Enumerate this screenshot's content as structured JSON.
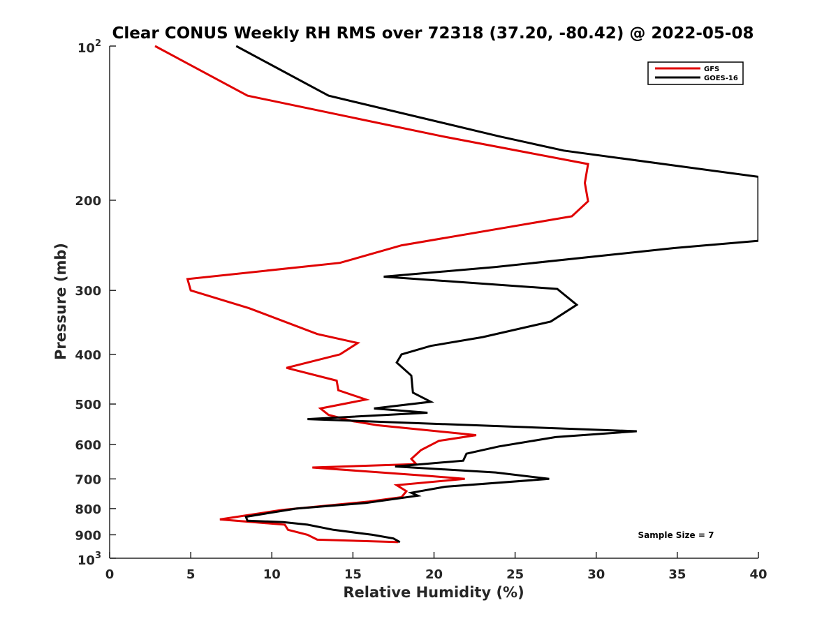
{
  "chart_data": {
    "type": "line",
    "title": "Clear CONUS Weekly RH RMS over 72318 (37.20, -80.42) @ 2022-05-08",
    "xlabel": "Relative Humidity (%)",
    "ylabel": "Pressure (mb)",
    "xlim": [
      0,
      40
    ],
    "ylim": [
      100,
      1000
    ],
    "y_scale": "log",
    "y_reversed": true,
    "x_ticks": [
      "0",
      "5",
      "10",
      "15",
      "20",
      "25",
      "30",
      "35",
      "40"
    ],
    "y_ticks": [
      {
        "value": 100,
        "base": "10",
        "exp": "2"
      },
      {
        "value": 200,
        "label": "200"
      },
      {
        "value": 300,
        "label": "300"
      },
      {
        "value": 400,
        "label": "400"
      },
      {
        "value": 500,
        "label": "500"
      },
      {
        "value": 600,
        "label": "600"
      },
      {
        "value": 700,
        "label": "700"
      },
      {
        "value": 800,
        "label": "800"
      },
      {
        "value": 900,
        "label": "900"
      },
      {
        "value": 1000,
        "base": "10",
        "exp": "3"
      }
    ],
    "grid": false,
    "legend_position": "top-right",
    "annotation": "Sample Size = 7",
    "series": [
      {
        "name": "GFS",
        "color": "#e00000",
        "points": [
          [
            2.8,
            100
          ],
          [
            8.5,
            125
          ],
          [
            20.5,
            150
          ],
          [
            29.5,
            170
          ],
          [
            29.3,
            185
          ],
          [
            29.5,
            201
          ],
          [
            28.5,
            215
          ],
          [
            18.0,
            245
          ],
          [
            14.2,
            265
          ],
          [
            4.8,
            285
          ],
          [
            5.0,
            300
          ],
          [
            8.6,
            325
          ],
          [
            12.8,
            365
          ],
          [
            15.3,
            380
          ],
          [
            14.2,
            400
          ],
          [
            10.9,
            425
          ],
          [
            14.0,
            450
          ],
          [
            14.1,
            470
          ],
          [
            15.8,
            490
          ],
          [
            13.0,
            510
          ],
          [
            13.5,
            525
          ],
          [
            15.0,
            540
          ],
          [
            16.5,
            550
          ],
          [
            22.6,
            575
          ],
          [
            20.3,
            590
          ],
          [
            19.2,
            615
          ],
          [
            18.6,
            640
          ],
          [
            18.9,
            655
          ],
          [
            12.5,
            665
          ],
          [
            19.5,
            690
          ],
          [
            21.9,
            700
          ],
          [
            17.7,
            720
          ],
          [
            18.3,
            740
          ],
          [
            18.0,
            760
          ],
          [
            16.0,
            775
          ],
          [
            10.6,
            805
          ],
          [
            6.8,
            840
          ],
          [
            10.8,
            860
          ],
          [
            11.0,
            880
          ],
          [
            12.2,
            900
          ],
          [
            12.8,
            920
          ],
          [
            17.8,
            930
          ]
        ]
      },
      {
        "name": "GOES-16",
        "color": "#000000",
        "points": [
          [
            7.8,
            100
          ],
          [
            13.5,
            125
          ],
          [
            24.0,
            150
          ],
          [
            28.0,
            160
          ],
          [
            40.0,
            180
          ],
          [
            40.0,
            240
          ],
          [
            34.8,
            248
          ],
          [
            23.8,
            270
          ],
          [
            16.9,
            282
          ],
          [
            27.6,
            298
          ],
          [
            28.8,
            320
          ],
          [
            27.2,
            345
          ],
          [
            23.0,
            370
          ],
          [
            19.8,
            385
          ],
          [
            18.0,
            400
          ],
          [
            17.7,
            415
          ],
          [
            18.6,
            440
          ],
          [
            18.7,
            475
          ],
          [
            19.8,
            495
          ],
          [
            16.3,
            510
          ],
          [
            19.6,
            520
          ],
          [
            12.2,
            535
          ],
          [
            32.5,
            565
          ],
          [
            27.5,
            580
          ],
          [
            24.0,
            605
          ],
          [
            22.0,
            625
          ],
          [
            21.8,
            645
          ],
          [
            17.6,
            662
          ],
          [
            23.8,
            680
          ],
          [
            27.1,
            700
          ],
          [
            20.7,
            725
          ],
          [
            18.6,
            745
          ],
          [
            19.0,
            755
          ],
          [
            15.8,
            780
          ],
          [
            11.5,
            800
          ],
          [
            8.4,
            830
          ],
          [
            8.5,
            845
          ],
          [
            10.7,
            850
          ],
          [
            12.2,
            860
          ],
          [
            13.8,
            880
          ],
          [
            16.2,
            900
          ],
          [
            17.5,
            915
          ],
          [
            17.9,
            930
          ]
        ]
      }
    ]
  }
}
